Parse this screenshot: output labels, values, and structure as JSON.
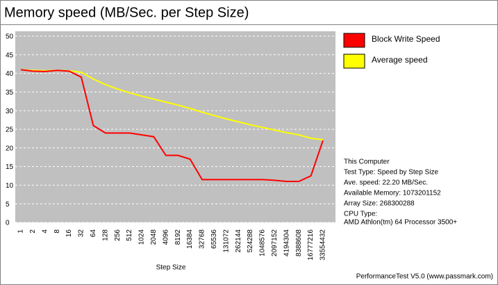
{
  "chart_data": {
    "type": "line",
    "title": "Memory speed (MB/Sec. per Step Size)",
    "x_label": "Step Size",
    "categories": [
      "1",
      "2",
      "4",
      "8",
      "16",
      "32",
      "64",
      "128",
      "256",
      "512",
      "1024",
      "2048",
      "4096",
      "8192",
      "16384",
      "32768",
      "65536",
      "131072",
      "262144",
      "524288",
      "1048576",
      "2097152",
      "4194304",
      "8388608",
      "16777216",
      "33554432"
    ],
    "series": [
      {
        "name": "Block Write Speed",
        "color": "#ff0000",
        "values": [
          41,
          40.6,
          40.5,
          40.8,
          40.6,
          39,
          26,
          24,
          24,
          24,
          23.5,
          23,
          18,
          18,
          17,
          11.5,
          11.5,
          11.5,
          11.5,
          11.5,
          11.5,
          11.3,
          11,
          11,
          12.5,
          22
        ]
      },
      {
        "name": "Average speed",
        "color": "#ffff00",
        "values": [
          41,
          40.8,
          40.7,
          40.8,
          40.7,
          40.3,
          38.5,
          37,
          35.8,
          34.8,
          33.9,
          33.1,
          32.3,
          31.5,
          30.6,
          29.6,
          28.7,
          27.8,
          27.0,
          26.2,
          25.5,
          24.8,
          24.1,
          23.5,
          22.6,
          22.2
        ]
      }
    ],
    "ylim": [
      0,
      50
    ],
    "yticks": [
      0,
      5,
      10,
      15,
      20,
      25,
      30,
      35,
      40,
      45,
      50
    ],
    "grid": true,
    "info": [
      "This Computer",
      "Test Type: Speed by Step Size",
      "Ave. speed: 22.20 MB/Sec.",
      "Available Memory: 1073201152",
      "Array Size: 268300288",
      "CPU Type:",
      "AMD Athlon(tm) 64 Processor 3500+"
    ],
    "footer": "PerformanceTest V5.0 (www.passmark.com)"
  }
}
